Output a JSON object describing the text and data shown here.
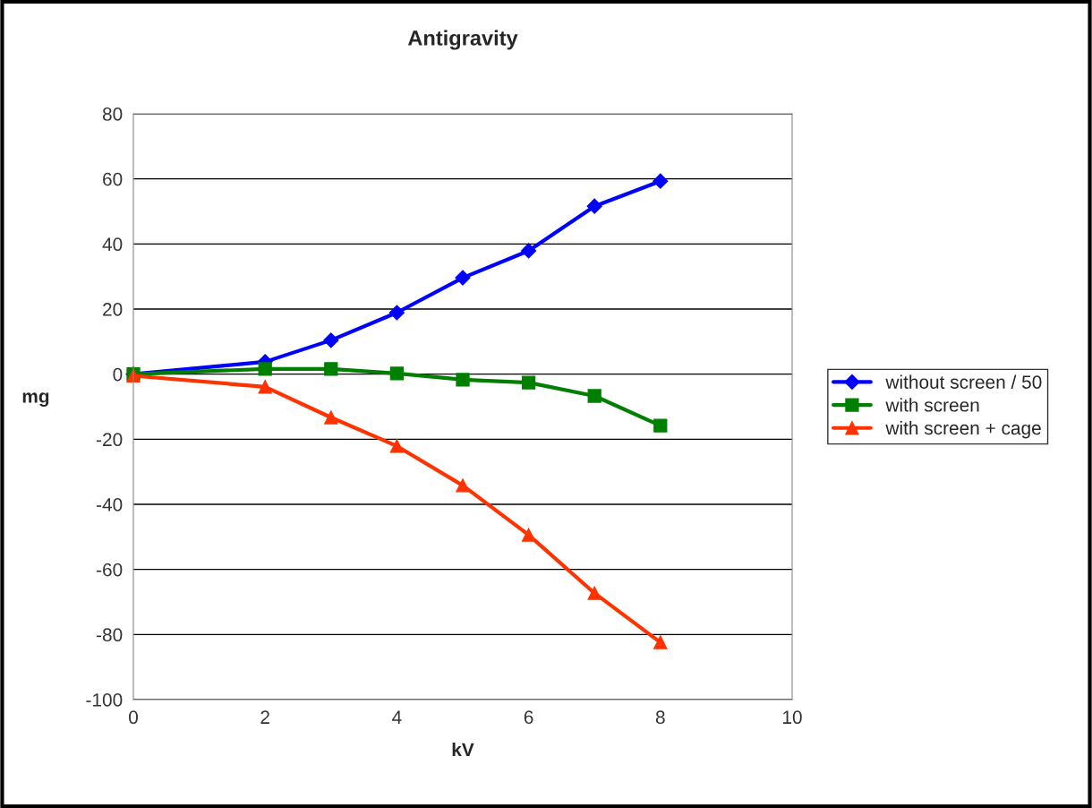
{
  "chart_data": {
    "type": "line",
    "title": "Antigravity",
    "xlabel": "kV",
    "ylabel": "mg",
    "x": [
      0,
      2,
      3,
      4,
      5,
      6,
      7,
      8
    ],
    "xlim": [
      0,
      10
    ],
    "xticks": [
      0,
      2,
      4,
      6,
      8,
      10
    ],
    "ylim": [
      -100,
      80
    ],
    "yticks": [
      -100,
      -80,
      -60,
      -40,
      -20,
      0,
      20,
      40,
      60,
      80
    ],
    "grid": "y",
    "legend": "right",
    "line_style": "solid",
    "series": [
      {
        "name": "without screen / 50",
        "color": "#0000ff",
        "marker": "diamond",
        "values": [
          0,
          3.8,
          10.4,
          18.9,
          29.6,
          37.9,
          51.6,
          59.3
        ]
      },
      {
        "name": "with screen",
        "color": "#007f00",
        "marker": "square",
        "values": [
          0,
          1.6,
          1.6,
          0.2,
          -1.7,
          -2.6,
          -6.7,
          -15.8
        ]
      },
      {
        "name": "with screen + cage",
        "color": "#ff3300",
        "marker": "triangle",
        "values": [
          -0.5,
          -3.9,
          -13.3,
          -22.1,
          -34.2,
          -49.4,
          -67.3,
          -82.4
        ]
      }
    ]
  }
}
